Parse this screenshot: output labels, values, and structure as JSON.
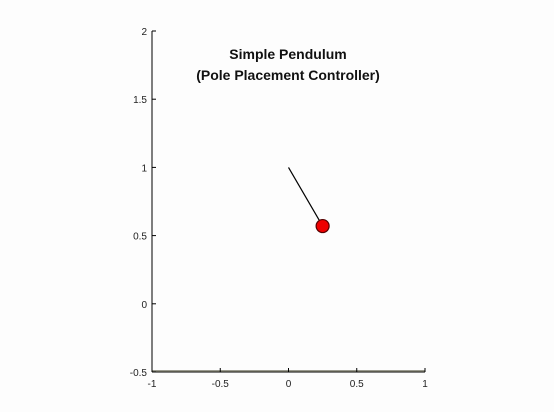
{
  "chart_data": {
    "type": "scatter",
    "title": "Simple Pendulum",
    "subtitle": "(Pole Placement Controller)",
    "xlabel": "",
    "ylabel": "",
    "xlim": [
      -1,
      1
    ],
    "ylim": [
      -0.5,
      2
    ],
    "grid": false,
    "x_ticks": [
      -1,
      -0.5,
      0,
      0.5,
      1
    ],
    "x_tick_labels": [
      "-1",
      "-0.5",
      "0",
      "0.5",
      "1"
    ],
    "y_ticks": [
      -0.5,
      0,
      0.5,
      1,
      1.5,
      2
    ],
    "y_tick_labels": [
      "-0.5",
      "0",
      "0.5",
      "1",
      "1.5",
      "2"
    ],
    "series": [
      {
        "name": "rod",
        "kind": "line",
        "x": [
          0,
          0.25
        ],
        "y": [
          1,
          0.57
        ]
      },
      {
        "name": "bob",
        "kind": "marker",
        "x": [
          0.25
        ],
        "y": [
          0.57
        ]
      }
    ],
    "colors": {
      "rod": "#000000",
      "bob_fill": "#ee0000",
      "bob_edge": "#550000",
      "axes": "#000000",
      "ground": "#7a7a6a"
    }
  }
}
